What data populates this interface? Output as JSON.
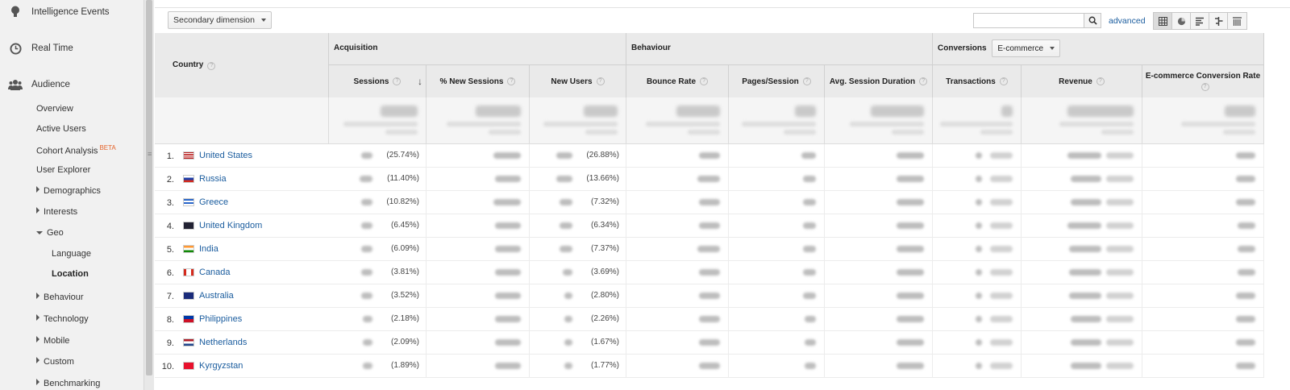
{
  "sidebar": {
    "top_items": [
      {
        "label": "Intelligence Events",
        "icon": "lightbulb-icon"
      },
      {
        "label": "Real Time",
        "icon": "clock-icon"
      },
      {
        "label": "Audience",
        "icon": "people-icon"
      }
    ],
    "audience_items": [
      "Overview",
      "Active Users",
      "Cohort Analysis",
      "User Explorer"
    ],
    "beta_label": "BETA",
    "collapsed_items": [
      "Demographics",
      "Interests"
    ],
    "geo_label": "Geo",
    "geo_items": [
      "Language",
      "Location"
    ],
    "more_items": [
      "Behaviour",
      "Technology",
      "Mobile",
      "Custom",
      "Benchmarking"
    ]
  },
  "toolbar": {
    "secondary_dimension": "Secondary dimension",
    "search_placeholder": "",
    "advanced_label": "advanced"
  },
  "table": {
    "country_header": "Country",
    "groups": {
      "acquisition": "Acquisition",
      "behaviour": "Behaviour",
      "conversions": "Conversions",
      "conversion_select": "E-commerce"
    },
    "columns": [
      "Sessions",
      "% New Sessions",
      "New Users",
      "Bounce Rate",
      "Pages/Session",
      "Avg. Session Duration",
      "Transactions",
      "Revenue",
      "E-commerce Conversion Rate"
    ],
    "help_glyph": "?",
    "rows": [
      {
        "rank": "1.",
        "country": "United States",
        "sessions_pct": "(25.74%)",
        "new_users_pct": "(26.88%)"
      },
      {
        "rank": "2.",
        "country": "Russia",
        "sessions_pct": "(11.40%)",
        "new_users_pct": "(13.66%)"
      },
      {
        "rank": "3.",
        "country": "Greece",
        "sessions_pct": "(10.82%)",
        "new_users_pct": "(7.32%)"
      },
      {
        "rank": "4.",
        "country": "United Kingdom",
        "sessions_pct": "(6.45%)",
        "new_users_pct": "(6.34%)"
      },
      {
        "rank": "5.",
        "country": "India",
        "sessions_pct": "(6.09%)",
        "new_users_pct": "(7.37%)"
      },
      {
        "rank": "6.",
        "country": "Canada",
        "sessions_pct": "(3.81%)",
        "new_users_pct": "(3.69%)"
      },
      {
        "rank": "7.",
        "country": "Australia",
        "sessions_pct": "(3.52%)",
        "new_users_pct": "(2.80%)"
      },
      {
        "rank": "8.",
        "country": "Philippines",
        "sessions_pct": "(2.18%)",
        "new_users_pct": "(2.26%)"
      },
      {
        "rank": "9.",
        "country": "Netherlands",
        "sessions_pct": "(2.09%)",
        "new_users_pct": "(1.67%)"
      },
      {
        "rank": "10.",
        "country": "Kyrgyzstan",
        "sessions_pct": "(1.89%)",
        "new_users_pct": "(1.77%)"
      }
    ]
  }
}
